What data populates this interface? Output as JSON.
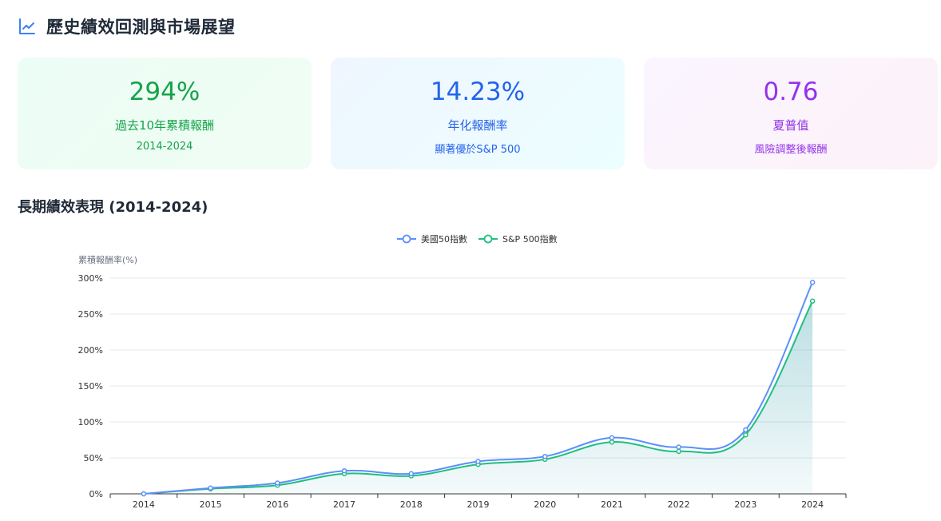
{
  "header": {
    "title": "歷史績效回測與市場展望",
    "icon": "line-chart-icon",
    "accent": "#3b82f6"
  },
  "cards": [
    {
      "value": "294%",
      "label": "過去10年累積報酬",
      "sub": "2014-2024",
      "color": "#16a34a"
    },
    {
      "value": "14.23%",
      "label": "年化報酬率",
      "sub": "顯著優於S&P 500",
      "color": "#2563eb"
    },
    {
      "value": "0.76",
      "label": "夏普值",
      "sub": "風險調整後報酬",
      "color": "#9333ea"
    }
  ],
  "section_title": "長期績效表現 (2014-2024)",
  "chart_data": {
    "type": "line",
    "title": "",
    "ylabel": "累積報酬率(%)",
    "xlabel": "",
    "categories": [
      "2014",
      "2015",
      "2016",
      "2017",
      "2018",
      "2019",
      "2020",
      "2021",
      "2022",
      "2023",
      "2024"
    ],
    "ylim": [
      0,
      300
    ],
    "yticks": [
      0,
      50,
      100,
      150,
      200,
      250,
      300
    ],
    "ytick_labels": [
      "0%",
      "50%",
      "100%",
      "150%",
      "200%",
      "250%",
      "300%"
    ],
    "legend_position": "top-center",
    "grid": true,
    "series": [
      {
        "name": "美國50指數",
        "color": "#5b8ff9",
        "values": [
          0,
          8,
          15,
          32,
          28,
          45,
          52,
          78,
          65,
          89,
          294
        ]
      },
      {
        "name": "S&P 500指數",
        "color": "#1fbf7f",
        "area": true,
        "values": [
          0,
          7,
          12,
          28,
          25,
          41,
          48,
          72,
          59,
          82,
          268
        ]
      }
    ]
  }
}
